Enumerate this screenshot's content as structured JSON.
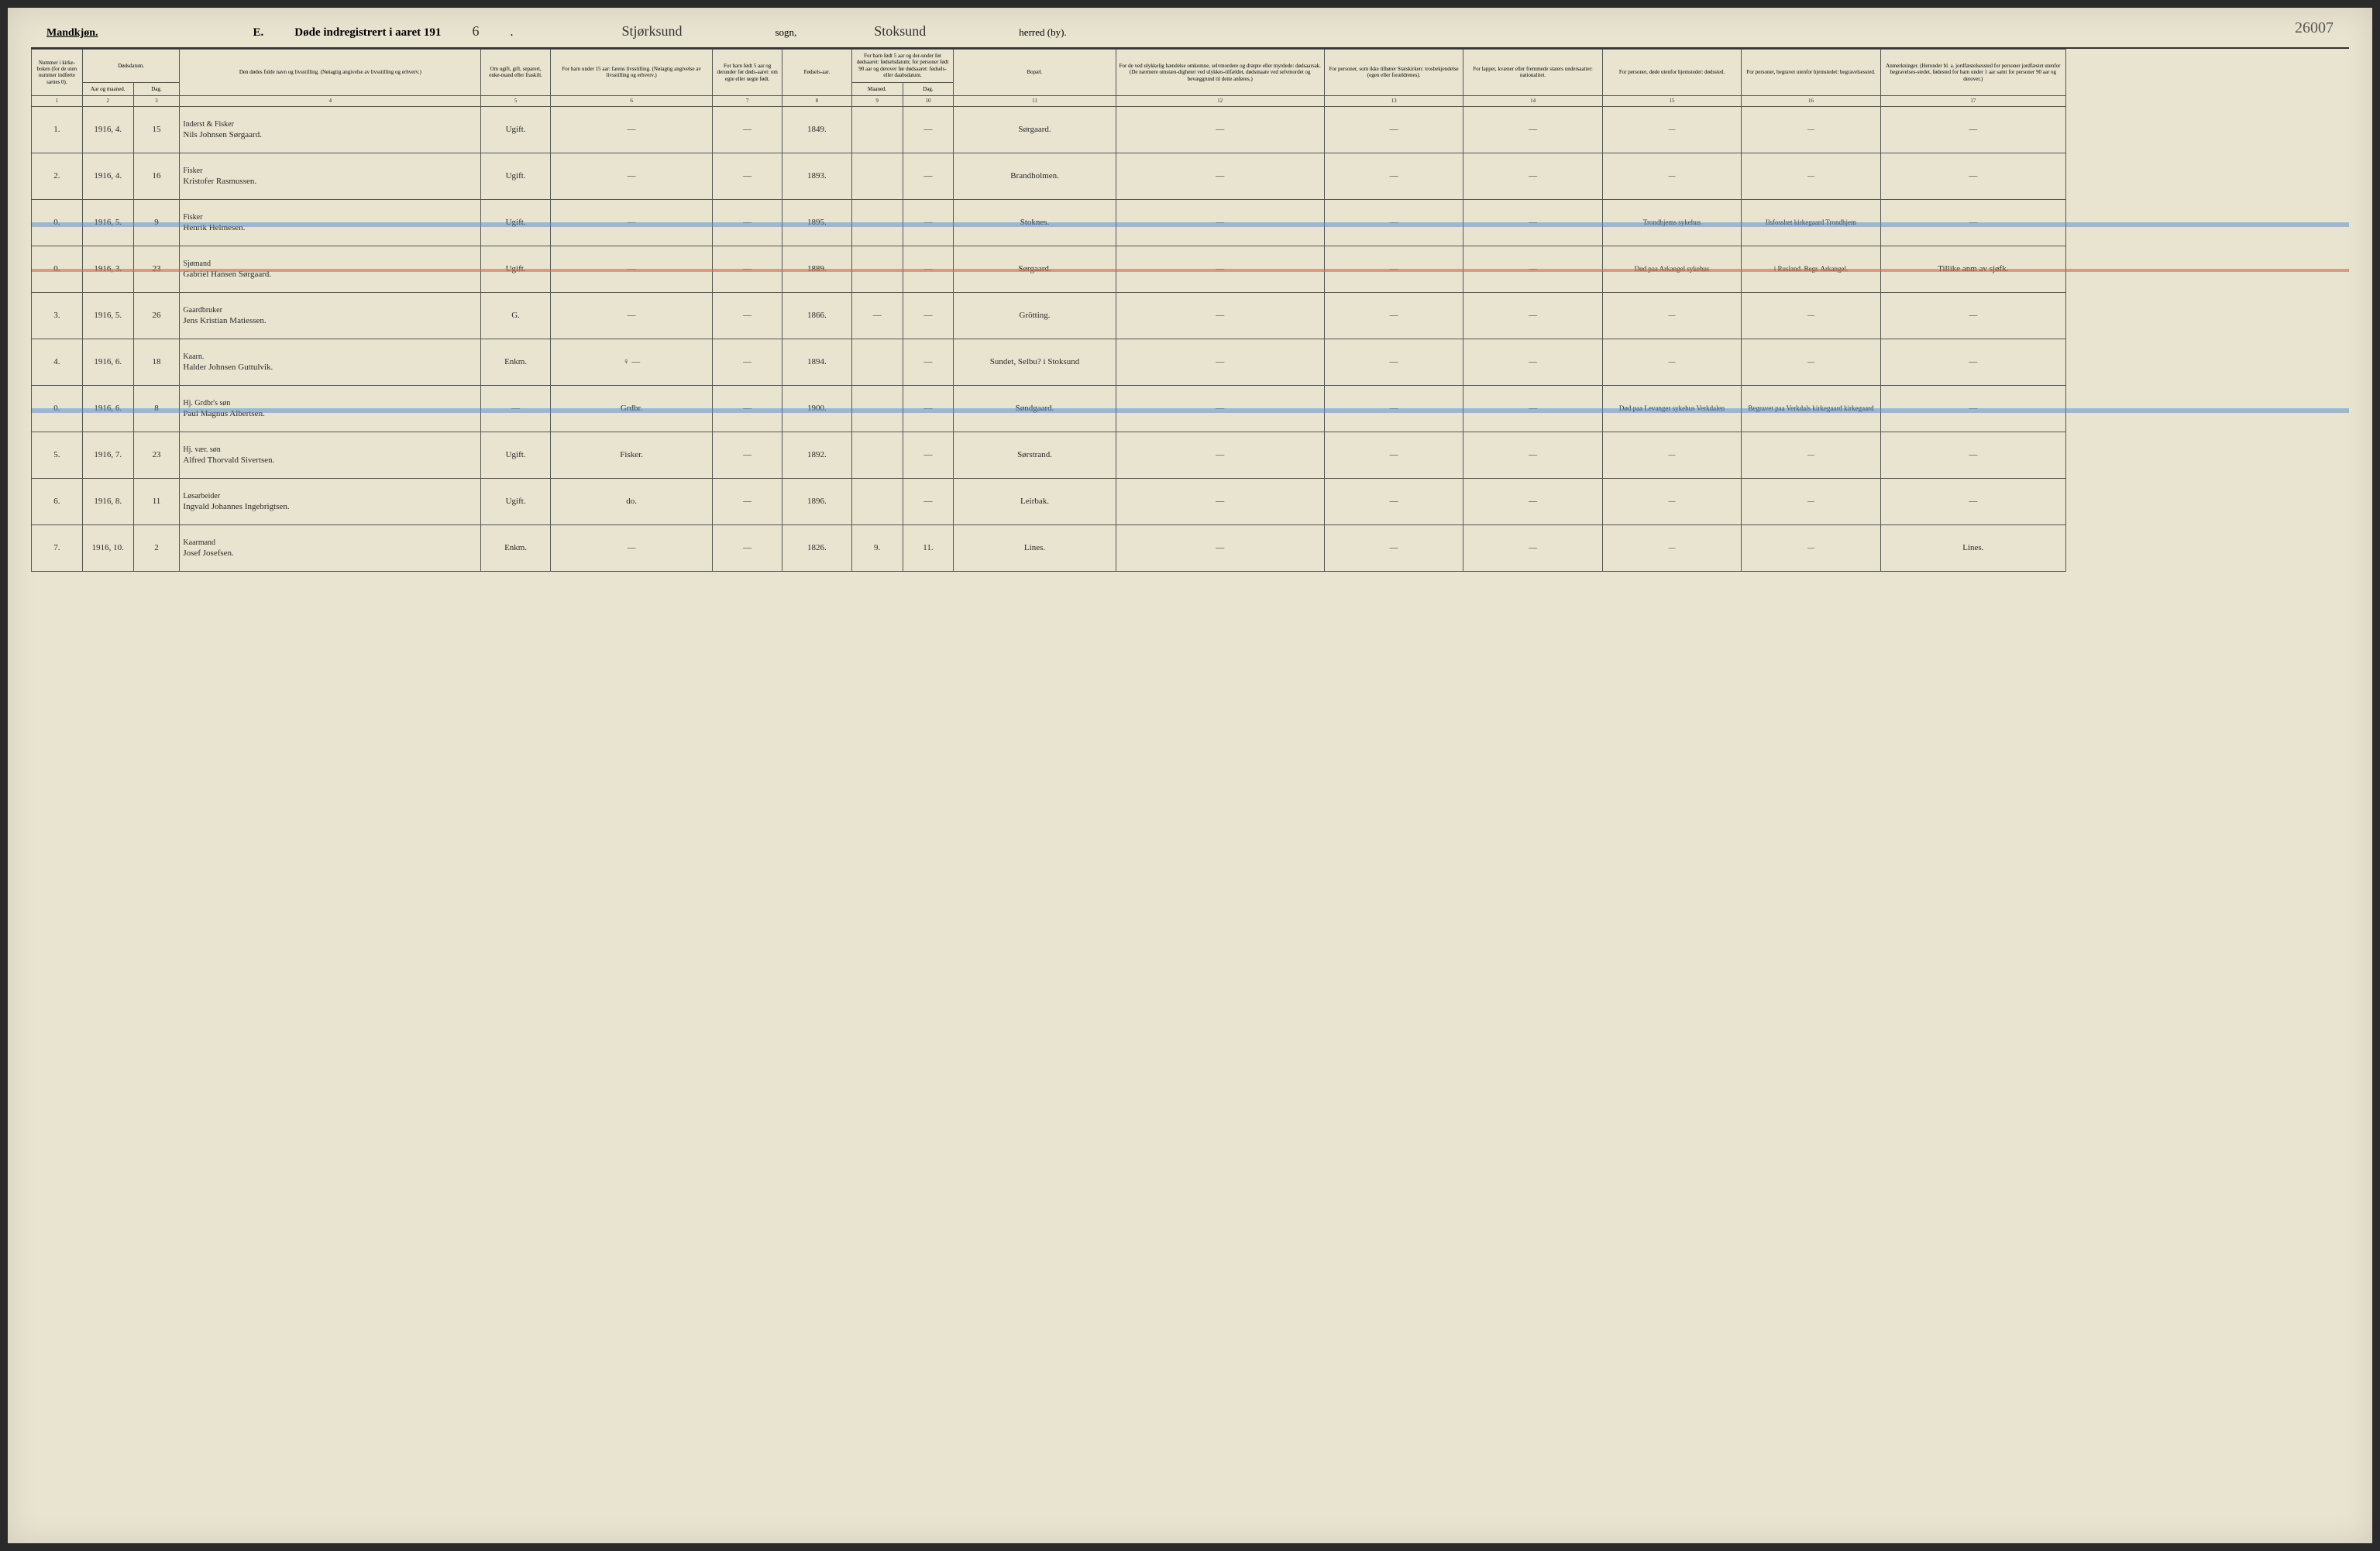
{
  "header": {
    "gender_label": "Mandkjøn.",
    "title_prefix": "E.",
    "title_text": "Døde indregistrert i aaret 191",
    "year_suffix": "6",
    "parish_handwritten": "Stjørksund",
    "sogn_label": "sogn,",
    "herred_handwritten": "Stoksund",
    "herred_label": "herred (by).",
    "page_number": "26007"
  },
  "columns": [
    {
      "num": "1",
      "width": "2.2%",
      "label": "Nummer i kirke-boken (for de uten nummer indførte sættes 0)."
    },
    {
      "num": "2",
      "width": "2.2%",
      "label": "Aar og maaned."
    },
    {
      "num": "3",
      "width": "2%",
      "label": "Dag."
    },
    {
      "num": "4",
      "width": "13%",
      "label": "Den dødes fulde navn og livsstilling. (Nøiagtig angivelse av livsstilling og erhverv.)"
    },
    {
      "num": "5",
      "width": "3%",
      "label": "Om ugift, gift, separert, enke-mand eller fraskilt."
    },
    {
      "num": "6",
      "width": "7%",
      "label": "For barn under 15 aar: farens livsstilling. (Nøiagtig angivelse av livsstilling og erhverv.)"
    },
    {
      "num": "7",
      "width": "3%",
      "label": "For barn født 5 aar og derunder før døds-aaret: om egte eller uegte født."
    },
    {
      "num": "8",
      "width": "3%",
      "label": "Fødsels-aar."
    },
    {
      "num": "9",
      "width": "2.2%",
      "label": "Maaned."
    },
    {
      "num": "10",
      "width": "2.2%",
      "label": "Dag."
    },
    {
      "num": "11",
      "width": "7%",
      "label": "Bopæl."
    },
    {
      "num": "12",
      "width": "9%",
      "label": "For de ved ulykkelig hændelse omkomne, selvmordere og dræpte eller myrdede: dødsaarsak. (De nærmere omstæn-digheter ved ulykkes-tilfældet, dødsmaate ved selvmordet og bevæggrund til dette anføres.)"
    },
    {
      "num": "13",
      "width": "6%",
      "label": "For personer, som ikke tilhører Statskirken: trosbekjendelse (egen eller forældrenes)."
    },
    {
      "num": "14",
      "width": "6%",
      "label": "For lapper, kvæner eller fremmede staters undersaatter: nationalitet."
    },
    {
      "num": "15",
      "width": "6%",
      "label": "For personer, døde utenfor hjemstedet: dødssted."
    },
    {
      "num": "16",
      "width": "6%",
      "label": "For personer, begravet utenfor hjemstedet: begravelsessted."
    },
    {
      "num": "17",
      "width": "8%",
      "label": "Anmerkninger. (Herunder bl. a. jordfæstelsessted for personer jordfæstet utenfor begravelses-stedet, fødested for barn under 1 aar samt for personer 90 aar og derover.)"
    }
  ],
  "header_groups": {
    "dodsdatum": "Dødsdatum.",
    "barn_fodt": "For barn født 5 aar og der-under før dødsaaret: fødselsdatum; for personer født 90 aar og derover før dødsaaret: fødsels- eller daabsdatum."
  },
  "rows": [
    {
      "num": "1.",
      "year": "1916, 4.",
      "day": "15",
      "occupation": "Inderst & Fisker",
      "name": "Nils Johnsen Sørgaard.",
      "status": "Ugift.",
      "parent": "—",
      "legit": "—",
      "birth_year": "1849.",
      "birth_m": "",
      "birth_d": "—",
      "residence": "Sørgaard.",
      "c12": "—",
      "c13": "—",
      "c14": "—",
      "c15": "—",
      "c16": "—",
      "c17": "—",
      "highlight": ""
    },
    {
      "num": "2.",
      "year": "1916, 4.",
      "day": "16",
      "occupation": "Fisker",
      "name": "Kristofer Rasmussen.",
      "status": "Ugift.",
      "parent": "—",
      "legit": "—",
      "birth_year": "1893.",
      "birth_m": "",
      "birth_d": "—",
      "residence": "Brandholmen.",
      "c12": "—",
      "c13": "—",
      "c14": "—",
      "c15": "—",
      "c16": "—",
      "c17": "—",
      "highlight": ""
    },
    {
      "num": "0.",
      "year": "1916, 5.",
      "day": "9",
      "occupation": "Fisker",
      "name": "Henrik Helmesen.",
      "status": "Ugift.",
      "parent": "—",
      "legit": "—",
      "birth_year": "1895.",
      "birth_m": "",
      "birth_d": "—",
      "residence": "Stoknes.",
      "c12": "—",
      "c13": "—",
      "c14": "—",
      "c15": "Trondhjems sykehus",
      "c16": "Ilsfosshet kirkegaard Trondhjem",
      "c17": "—",
      "highlight": "blue"
    },
    {
      "num": "0.",
      "year": "1916, 3.",
      "day": "23",
      "occupation": "Sjømand",
      "name": "Gabriel Hansen Sørgaard.",
      "status": "Ugift.",
      "parent": "—",
      "legit": "—",
      "birth_year": "1889.",
      "birth_m": "",
      "birth_d": "—",
      "residence": "Sørgaard.",
      "c12": "—",
      "c13": "—",
      "c14": "—",
      "c15": "Død paa Arkangel sykehus",
      "c16": "i Rusland. Begr. Arkangel.",
      "c17": "Tillike anm av sjøfk.",
      "highlight": "red"
    },
    {
      "num": "3.",
      "year": "1916, 5.",
      "day": "26",
      "occupation": "Gaardbruker",
      "name": "Jens Kristian Matiessen.",
      "status": "G.",
      "parent": "—",
      "legit": "—",
      "birth_year": "1866.",
      "birth_m": "—",
      "birth_d": "—",
      "residence": "Grötting.",
      "c12": "—",
      "c13": "—",
      "c14": "—",
      "c15": "—",
      "c16": "—",
      "c17": "—",
      "highlight": ""
    },
    {
      "num": "4.",
      "year": "1916, 6.",
      "day": "18",
      "occupation": "Kaarn.",
      "name": "Halder Johnsen Guttulvik.",
      "status": "Enkm.",
      "parent": "♀ —",
      "legit": "—",
      "birth_year": "1894.",
      "birth_m": "",
      "birth_d": "—",
      "residence": "Sundet, Selbu? i Stoksund",
      "c12": "—",
      "c13": "—",
      "c14": "—",
      "c15": "—",
      "c16": "—",
      "c17": "—",
      "highlight": ""
    },
    {
      "num": "0.",
      "year": "1916, 6.",
      "day": "8",
      "occupation": "Hj. Grdbr's søn",
      "name": "Paul Magnus Albertsen.",
      "status": "—",
      "parent": "Grdbr.",
      "legit": "—",
      "birth_year": "1900.",
      "birth_m": "",
      "birth_d": "—",
      "residence": "Søndgaard.",
      "c12": "—",
      "c13": "—",
      "c14": "—",
      "c15": "Død paa Levanger sykehus Verkdalen",
      "c16": "Begravet paa Verkdals kirkegaard kirkegaard",
      "c17": "—",
      "highlight": "blue"
    },
    {
      "num": "5.",
      "year": "1916, 7.",
      "day": "23",
      "occupation": "Hj. vær. søn",
      "name": "Alfred Thorvald Sivertsen.",
      "status": "Ugift.",
      "parent": "Fisker.",
      "legit": "—",
      "birth_year": "1892.",
      "birth_m": "",
      "birth_d": "—",
      "residence": "Sørstrand.",
      "c12": "—",
      "c13": "—",
      "c14": "—",
      "c15": "—",
      "c16": "—",
      "c17": "—",
      "highlight": ""
    },
    {
      "num": "6.",
      "year": "1916, 8.",
      "day": "11",
      "occupation": "Løsarbeider",
      "name": "Ingvald Johannes Ingebrigtsen.",
      "status": "Ugift.",
      "parent": "do.",
      "legit": "—",
      "birth_year": "1896.",
      "birth_m": "",
      "birth_d": "—",
      "residence": "Leirbak.",
      "c12": "—",
      "c13": "—",
      "c14": "—",
      "c15": "—",
      "c16": "—",
      "c17": "—",
      "highlight": ""
    },
    {
      "num": "7.",
      "year": "1916, 10.",
      "day": "2",
      "occupation": "Kaarmand",
      "name": "Josef Josefsen.",
      "status": "Enkm.",
      "parent": "—",
      "legit": "—",
      "birth_year": "1826.",
      "birth_m": "9.",
      "birth_d": "11.",
      "residence": "Lines.",
      "c12": "—",
      "c13": "—",
      "c14": "—",
      "c15": "—",
      "c16": "—",
      "c17": "Lines.",
      "highlight": ""
    }
  ]
}
